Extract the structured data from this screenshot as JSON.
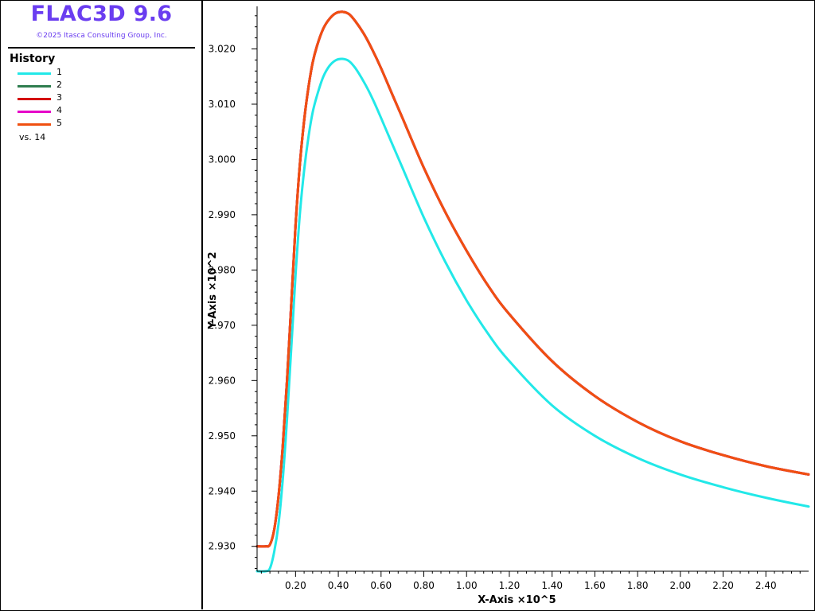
{
  "app": {
    "title": "FLAC3D 9.6",
    "copyright": "©2025 Itasca Consulting Group, Inc."
  },
  "legend": {
    "heading": "History",
    "vs_label": "vs. 14",
    "items": [
      {
        "label": "1",
        "color": "#22e8e8"
      },
      {
        "label": "2",
        "color": "#2e7d4f"
      },
      {
        "label": "3",
        "color": "#d40000"
      },
      {
        "label": "4",
        "color": "#e600c8"
      },
      {
        "label": "5",
        "color": "#f05010"
      }
    ]
  },
  "chart_data": {
    "type": "line",
    "xlabel": "X-Axis ×10^5",
    "ylabel": "Y-Axis ×10^2",
    "xlim": [
      0.02,
      2.6
    ],
    "ylim": [
      2.9255,
      3.0277
    ],
    "xticks": [
      0.2,
      0.4,
      0.6,
      0.8,
      1.0,
      1.2,
      1.4,
      1.6,
      1.8,
      2.0,
      2.2,
      2.4
    ],
    "xtick_labels": [
      "0.20",
      "0.40",
      "0.60",
      "0.80",
      "1.00",
      "1.20",
      "1.40",
      "1.60",
      "1.80",
      "2.00",
      "2.20",
      "2.40"
    ],
    "yticks": [
      2.93,
      2.94,
      2.95,
      2.96,
      2.97,
      2.98,
      2.99,
      3.0,
      3.01,
      3.02
    ],
    "ytick_labels": [
      "2.930",
      "2.940",
      "2.950",
      "2.960",
      "2.970",
      "2.980",
      "2.990",
      "3.000",
      "3.010",
      "3.020"
    ],
    "grid": false,
    "series": [
      {
        "name": "1",
        "color": "#22e8e8",
        "x": [
          0.02,
          0.06,
          0.08,
          0.1,
          0.12,
          0.14,
          0.16,
          0.18,
          0.2,
          0.22,
          0.24,
          0.26,
          0.28,
          0.3,
          0.33,
          0.36,
          0.39,
          0.42,
          0.45,
          0.48,
          0.52,
          0.56,
          0.6,
          0.65,
          0.7,
          0.8,
          0.9,
          1.0,
          1.1,
          1.2,
          1.4,
          1.6,
          1.8,
          2.0,
          2.2,
          2.4,
          2.6
        ],
        "y": [
          2.9255,
          2.9255,
          2.926,
          2.929,
          2.934,
          2.942,
          2.953,
          2.966,
          2.979,
          2.99,
          2.998,
          3.004,
          3.0085,
          3.0115,
          3.015,
          3.017,
          3.018,
          3.0182,
          3.0178,
          3.0165,
          3.014,
          3.011,
          3.0075,
          3.003,
          2.9985,
          2.9895,
          2.9815,
          2.9745,
          2.9685,
          2.9635,
          2.9555,
          2.95,
          2.946,
          2.943,
          2.9407,
          2.9388,
          2.9372
        ]
      },
      {
        "name": "2",
        "color": "#2e7d4f",
        "x": [
          0.02,
          0.06,
          0.08,
          0.1,
          0.12,
          0.14,
          0.16,
          0.18,
          0.2,
          0.22,
          0.24,
          0.26,
          0.28,
          0.3,
          0.33,
          0.36,
          0.39,
          0.42,
          0.45,
          0.48,
          0.52,
          0.56,
          0.6,
          0.65,
          0.7,
          0.8,
          0.9,
          1.0,
          1.1,
          1.2,
          1.4,
          1.6,
          1.8,
          2.0,
          2.2,
          2.4,
          2.6
        ],
        "y": [
          2.93,
          2.93,
          2.9303,
          2.933,
          2.939,
          2.948,
          2.96,
          2.974,
          2.988,
          2.999,
          3.007,
          3.013,
          3.0175,
          3.0205,
          3.0237,
          3.0255,
          3.0265,
          3.0267,
          3.0263,
          3.025,
          3.0227,
          3.0198,
          3.0165,
          3.012,
          3.0075,
          2.9985,
          2.9905,
          2.9835,
          2.9772,
          2.972,
          2.9635,
          2.9572,
          2.9525,
          2.949,
          2.9465,
          2.9445,
          2.943
        ]
      },
      {
        "name": "3",
        "color": "#d40000",
        "x": [
          0.02,
          0.06,
          0.08,
          0.1,
          0.12,
          0.14,
          0.16,
          0.18,
          0.2,
          0.22,
          0.24,
          0.26,
          0.28,
          0.3,
          0.33,
          0.36,
          0.39,
          0.42,
          0.45,
          0.48,
          0.52,
          0.56,
          0.6,
          0.65,
          0.7,
          0.8,
          0.9,
          1.0,
          1.1,
          1.2,
          1.4,
          1.6,
          1.8,
          2.0,
          2.2,
          2.4,
          2.6
        ],
        "y": [
          2.93,
          2.93,
          2.9303,
          2.933,
          2.939,
          2.948,
          2.96,
          2.974,
          2.988,
          2.999,
          3.007,
          3.013,
          3.0175,
          3.0205,
          3.0237,
          3.0255,
          3.0265,
          3.0267,
          3.0263,
          3.025,
          3.0227,
          3.0198,
          3.0165,
          3.012,
          3.0075,
          2.9985,
          2.9905,
          2.9835,
          2.9772,
          2.972,
          2.9635,
          2.9572,
          2.9525,
          2.949,
          2.9465,
          2.9445,
          2.943
        ]
      },
      {
        "name": "4",
        "color": "#e600c8",
        "x": [
          0.02,
          0.06,
          0.08,
          0.1,
          0.12,
          0.14,
          0.16,
          0.18,
          0.2,
          0.22,
          0.24,
          0.26,
          0.28,
          0.3,
          0.33,
          0.36,
          0.39,
          0.42,
          0.45,
          0.48,
          0.52,
          0.56,
          0.6,
          0.65,
          0.7,
          0.8,
          0.9,
          1.0,
          1.1,
          1.2,
          1.4,
          1.6,
          1.8,
          2.0,
          2.2,
          2.4,
          2.6
        ],
        "y": [
          2.93,
          2.93,
          2.9303,
          2.933,
          2.939,
          2.948,
          2.96,
          2.974,
          2.988,
          2.999,
          3.007,
          3.013,
          3.0175,
          3.0205,
          3.0237,
          3.0255,
          3.0265,
          3.0267,
          3.0263,
          3.025,
          3.0227,
          3.0198,
          3.0165,
          3.012,
          3.0075,
          2.9985,
          2.9905,
          2.9835,
          2.9772,
          2.972,
          2.9635,
          2.9572,
          2.9525,
          2.949,
          2.9465,
          2.9445,
          2.943
        ]
      },
      {
        "name": "5",
        "color": "#f05010",
        "x": [
          0.02,
          0.06,
          0.08,
          0.1,
          0.12,
          0.14,
          0.16,
          0.18,
          0.2,
          0.22,
          0.24,
          0.26,
          0.28,
          0.3,
          0.33,
          0.36,
          0.39,
          0.42,
          0.45,
          0.48,
          0.52,
          0.56,
          0.6,
          0.65,
          0.7,
          0.8,
          0.9,
          1.0,
          1.1,
          1.2,
          1.4,
          1.6,
          1.8,
          2.0,
          2.2,
          2.4,
          2.6
        ],
        "y": [
          2.93,
          2.93,
          2.9303,
          2.933,
          2.939,
          2.948,
          2.96,
          2.974,
          2.988,
          2.999,
          3.007,
          3.013,
          3.0175,
          3.0205,
          3.0237,
          3.0255,
          3.0265,
          3.0267,
          3.0263,
          3.025,
          3.0227,
          3.0198,
          3.0165,
          3.012,
          3.0075,
          2.9985,
          2.9905,
          2.9835,
          2.9772,
          2.972,
          2.9635,
          2.9572,
          2.9525,
          2.949,
          2.9465,
          2.9445,
          2.943
        ]
      }
    ]
  }
}
